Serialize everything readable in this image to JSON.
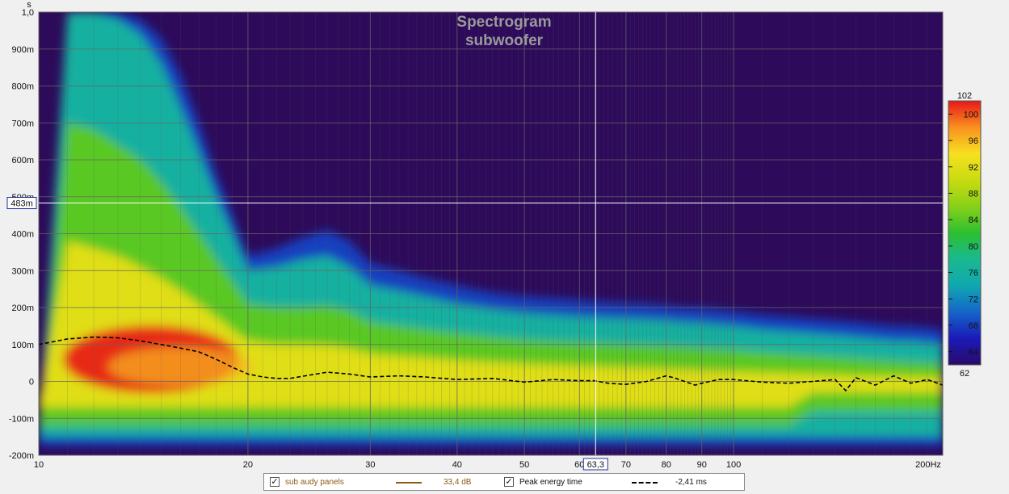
{
  "chart_data": {
    "type": "heatmap",
    "title": "Spectrogram",
    "subtitle": "subwoofer",
    "x_axis": {
      "scale": "log",
      "range_hz": [
        10,
        200
      ],
      "unit": "Hz",
      "ticks": [
        10,
        20,
        30,
        40,
        50,
        60,
        70,
        80,
        90,
        100,
        200
      ],
      "tick_labels": [
        "10",
        "20",
        "30",
        "40",
        "50",
        "60",
        "70",
        "80",
        "90",
        "100",
        "200Hz"
      ]
    },
    "y_axis": {
      "unit": "s",
      "range_ms": [
        -200,
        1000
      ],
      "ticks_ms": [
        1000,
        900,
        800,
        700,
        600,
        500,
        400,
        300,
        200,
        100,
        0,
        -100,
        -200
      ],
      "tick_labels": [
        "1,0",
        "900m",
        "800m",
        "700m",
        "600m",
        "500m",
        "400m",
        "300m",
        "200m",
        "100m",
        "0",
        "-100m",
        "-200m"
      ]
    },
    "colorbar": {
      "range_db": [
        62,
        102
      ],
      "ticks": [
        64,
        68,
        72,
        76,
        80,
        84,
        88,
        92,
        96,
        100
      ],
      "min_label": "62",
      "max_label": "102",
      "stops": [
        {
          "db": 62,
          "color": "#2a0a6a"
        },
        {
          "db": 66,
          "color": "#1a1ab8"
        },
        {
          "db": 70,
          "color": "#1565c8"
        },
        {
          "db": 74,
          "color": "#10a8b0"
        },
        {
          "db": 78,
          "color": "#1ab890"
        },
        {
          "db": 82,
          "color": "#2cc030"
        },
        {
          "db": 86,
          "color": "#88d018"
        },
        {
          "db": 90,
          "color": "#c8dc10"
        },
        {
          "db": 94,
          "color": "#f8e020"
        },
        {
          "db": 98,
          "color": "#f89020"
        },
        {
          "db": 102,
          "color": "#e81818"
        }
      ]
    },
    "background_color": "#2d0a5a",
    "cursor": {
      "x_label": "63,3",
      "y_label": "483m",
      "freq_hz": 63.3,
      "time_ms": 483
    },
    "contour_time_ms": {
      "freqs_hz": [
        10,
        11,
        12,
        13,
        14,
        15,
        16,
        17,
        18,
        19,
        20,
        22,
        24,
        26,
        28,
        30,
        33,
        36,
        40,
        45,
        50,
        55,
        60,
        65,
        70,
        75,
        80,
        85,
        90,
        100,
        110,
        120,
        130,
        140,
        150,
        160,
        170,
        180,
        190,
        200
      ],
      "levels_db": [
        68,
        76,
        84,
        92
      ],
      "level_times_ms": [
        [
          -180,
          1000,
          1000,
          1000,
          980,
          930,
          830,
          700,
          560,
          450,
          340,
          360,
          390,
          410,
          380,
          320,
          300,
          280,
          260,
          240,
          230,
          225,
          220,
          215,
          212,
          210,
          205,
          200,
          200,
          190,
          180,
          175,
          170,
          165,
          160,
          155,
          150,
          150,
          145,
          140
        ],
        [
          -155,
          1000,
          1000,
          980,
          940,
          860,
          740,
          620,
          500,
          400,
          300,
          310,
          330,
          340,
          310,
          260,
          245,
          230,
          210,
          195,
          185,
          180,
          175,
          172,
          170,
          168,
          165,
          160,
          158,
          150,
          140,
          135,
          130,
          125,
          120,
          115,
          110,
          110,
          105,
          100
        ],
        [
          -120,
          700,
          680,
          640,
          600,
          540,
          470,
          400,
          330,
          270,
          210,
          200,
          200,
          205,
          190,
          160,
          150,
          140,
          130,
          120,
          112,
          108,
          105,
          102,
          100,
          98,
          96,
          93,
          90,
          85,
          78,
          74,
          70,
          66,
          62,
          58,
          55,
          52,
          50,
          48
        ],
        [
          -60,
          380,
          360,
          340,
          310,
          280,
          245,
          210,
          175,
          140,
          110,
          100,
          100,
          98,
          90,
          75,
          70,
          65,
          58,
          52,
          48,
          45,
          42,
          40,
          38,
          36,
          34,
          32,
          30,
          27,
          24,
          22,
          20,
          18,
          16,
          15,
          14,
          13,
          12,
          12
        ]
      ],
      "peak_region": {
        "freqs_hz": [
          10,
          20
        ],
        "db": 102
      }
    },
    "series": [
      {
        "name": "Peak energy time",
        "style": "dashed",
        "color": "#000000",
        "x_hz": [
          10,
          11,
          12,
          13,
          14,
          15,
          16,
          17,
          18,
          19,
          20,
          21,
          22,
          23,
          24,
          26,
          28,
          30,
          33,
          36,
          40,
          45,
          50,
          55,
          60,
          63,
          66,
          70,
          75,
          80,
          82,
          85,
          88,
          90,
          95,
          100,
          110,
          120,
          130,
          140,
          145,
          150,
          160,
          170,
          180,
          190,
          200
        ],
        "y_ms": [
          100,
          115,
          120,
          118,
          110,
          100,
          90,
          80,
          60,
          38,
          20,
          12,
          8,
          8,
          14,
          25,
          20,
          12,
          15,
          12,
          5,
          8,
          -2,
          5,
          2,
          2,
          -5,
          -8,
          0,
          15,
          10,
          0,
          -10,
          -5,
          5,
          5,
          -2,
          -5,
          0,
          5,
          -25,
          10,
          -10,
          15,
          -5,
          5,
          -10
        ]
      }
    ],
    "legend": {
      "entries": [
        {
          "label": "sub  audy panels",
          "value": "33,4 dB",
          "color": "#8b5a14",
          "style": "solid",
          "checked": true
        },
        {
          "label": "Peak energy time",
          "value": "-2,41 ms",
          "color": "#000000",
          "style": "dashed",
          "checked": true
        }
      ]
    }
  }
}
